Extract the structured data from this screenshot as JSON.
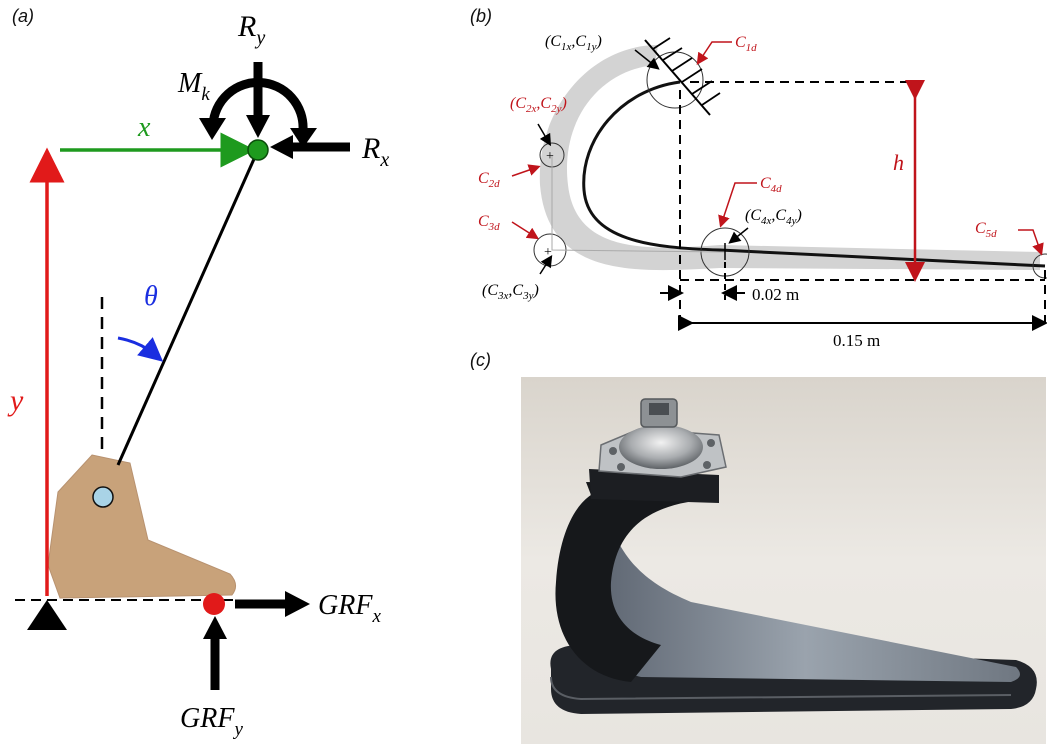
{
  "panel_labels": {
    "a": "(a)",
    "b": "(b)",
    "c": "(c)"
  },
  "panel_a": {
    "R": "R",
    "R_y_sub": "y",
    "M": "M",
    "M_k_sub": "k",
    "R_x_sub": "x",
    "x_label": "x",
    "y_label": "y",
    "theta": "θ",
    "GRF": "GRF",
    "GRF_x_sub": "x",
    "GRF_y_sub": "y"
  },
  "panel_b": {
    "c1_coord": "(C",
    "c1_sub_x": "1x",
    "c1_sub_y": "1y",
    "c2_coord": "(C",
    "c2_sub_x": "2x",
    "c2_sub_y": "2y",
    "c3_coord": "(C",
    "c3_sub_x": "3x",
    "c3_sub_y": "3y",
    "c4_coord": "(C",
    "c4_sub_x": "4x",
    "c4_sub_y": "4y",
    "C": "C",
    "c1d_sub": "1d",
    "c2d_sub": "2d",
    "c3d_sub": "3d",
    "c4d_sub": "4d",
    "c5d_sub": "5d",
    "h": "h",
    "dim_small": "0.02 m",
    "dim_large": "0.15 m"
  },
  "colors": {
    "red": "#e11a1a",
    "green": "#1e9a1e",
    "blue": "#1a2ee0",
    "dark_red": "#c0141b",
    "foot_tan": "#c8a27a",
    "joint_blue": "#a9d3e6"
  },
  "icons": {
    "pin_support": "triangle-icon",
    "knee_joint": "green-dot-icon",
    "contact_point": "red-dot-icon"
  }
}
